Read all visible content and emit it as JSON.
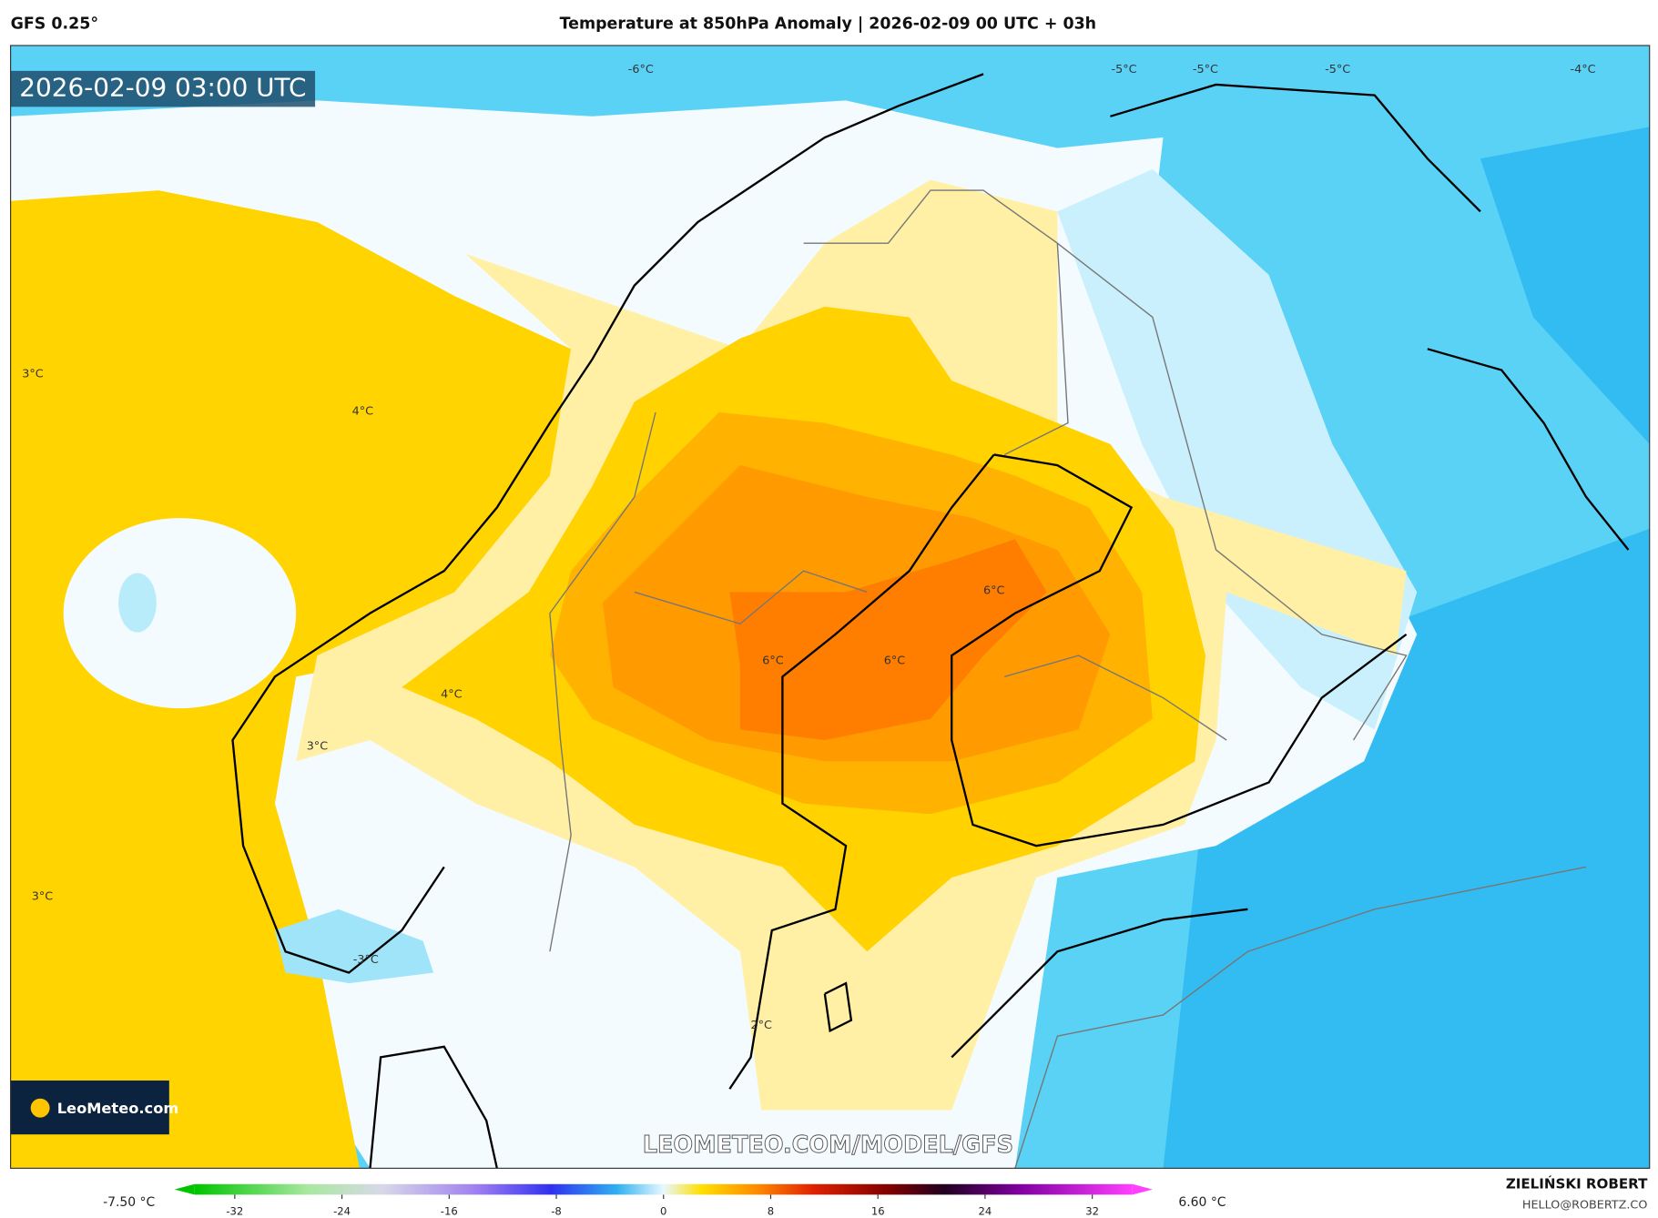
{
  "header": {
    "model": "GFS 0.25°",
    "title": "Temperature at 850hPa Anomaly | 2026-02-09 00 UTC + 03h"
  },
  "map": {
    "valid_time": "2026-02-09 03:00 UTC",
    "contour_labels": [
      "-6°C",
      "-5°C",
      "-5°C",
      "-5°C",
      "-4°C",
      "3°C",
      "4°C",
      "6°C",
      "6°C",
      "6°C",
      "4°C",
      "3°C",
      "3°C",
      "-3°C",
      "2°C"
    ],
    "logo": "LeoMeteo.com",
    "watermark": "LEOMETEO.COM/MODEL/GFS"
  },
  "legend": {
    "min_label": "-7.50 °C",
    "max_label": "6.60 °C",
    "range": [
      -35,
      35
    ],
    "ticks": [
      -32,
      -24,
      -16,
      -8,
      0,
      8,
      16,
      24,
      32
    ]
  },
  "credits": {
    "author": "ZIELIŃSKI ROBERT",
    "email": "HELLO@ROBERTZ.CO"
  }
}
